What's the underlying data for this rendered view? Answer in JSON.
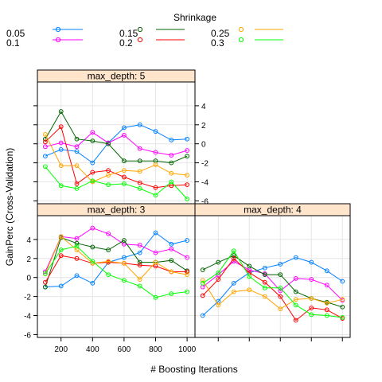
{
  "chart_data": {
    "type": "line",
    "xlabel": "# Boosting Iterations",
    "ylabel": "GainPerc (Cross-Validation)",
    "legend_title": "Shrinkage",
    "legend_position": "top",
    "grid": true,
    "x": [
      100,
      200,
      300,
      400,
      500,
      600,
      700,
      800,
      900,
      1000
    ],
    "x_ticks": [
      200,
      400,
      600,
      800,
      1000
    ],
    "x_tick_labels": [
      "200",
      "400",
      "600",
      "800",
      "1000"
    ],
    "xlim": [
      50,
      1050
    ],
    "ylim": [
      -6.3,
      6.5
    ],
    "y_ticks": [
      -6,
      -4,
      -2,
      0,
      2,
      4
    ],
    "y_tick_labels": [
      "-6",
      "-4",
      "-2",
      "0",
      "2",
      "4"
    ],
    "series_meta": [
      {
        "name": "0.05",
        "color": "#0080ff"
      },
      {
        "name": "0.1",
        "color": "#ff00ff"
      },
      {
        "name": "0.15",
        "color": "#006400"
      },
      {
        "name": "0.2",
        "color": "#ff0000"
      },
      {
        "name": "0.25",
        "color": "#ffa500"
      },
      {
        "name": "0.3",
        "color": "#00ff00"
      }
    ],
    "panels": [
      {
        "label": "max_depth: 5",
        "series": [
          {
            "name": "0.05",
            "values": [
              -1.3,
              -0.6,
              -0.8,
              -2.0,
              0.1,
              1.7,
              2.0,
              1.3,
              0.4,
              0.5
            ]
          },
          {
            "name": "0.1",
            "values": [
              -0.3,
              0.1,
              -0.3,
              1.2,
              0.1,
              0.9,
              -0.5,
              -0.9,
              -1.2,
              -0.7
            ]
          },
          {
            "name": "0.15",
            "values": [
              0.5,
              3.4,
              0.5,
              0.3,
              0.0,
              -1.8,
              -1.8,
              -1.8,
              -2.0,
              -1.3
            ]
          },
          {
            "name": "0.2",
            "values": [
              0.2,
              1.8,
              -4.2,
              -3.0,
              -2.8,
              -3.5,
              -4.1,
              -4.6,
              -4.4,
              -4.3
            ]
          },
          {
            "name": "0.25",
            "values": [
              1.0,
              -2.3,
              -2.3,
              -4.0,
              -3.3,
              -2.8,
              -2.9,
              -2.2,
              -3.1,
              -3.3
            ]
          },
          {
            "name": "0.3",
            "values": [
              -2.4,
              -4.4,
              -4.7,
              -3.9,
              -4.3,
              -4.2,
              -4.7,
              -5.4,
              -4.0,
              -5.8
            ]
          }
        ]
      },
      {
        "label": "max_depth: 3",
        "series": [
          {
            "name": "0.05",
            "values": [
              -1.0,
              -0.9,
              0.2,
              -0.6,
              1.6,
              2.1,
              2.6,
              4.7,
              3.5,
              3.9
            ]
          },
          {
            "name": "0.1",
            "values": [
              0.6,
              4.3,
              4.1,
              5.2,
              4.6,
              3.5,
              3.4,
              2.6,
              3.0,
              2.1
            ]
          },
          {
            "name": "0.15",
            "values": [
              -1.0,
              4.2,
              3.6,
              3.2,
              2.9,
              3.9,
              1.6,
              1.6,
              1.8,
              0.7
            ]
          },
          {
            "name": "0.2",
            "values": [
              -0.5,
              2.3,
              2.0,
              1.5,
              1.6,
              1.5,
              1.3,
              1.2,
              0.6,
              0.6
            ]
          },
          {
            "name": "0.25",
            "values": [
              0.4,
              4.3,
              2.9,
              1.5,
              1.7,
              1.5,
              -0.2,
              1.6,
              0.6,
              0.3
            ]
          },
          {
            "name": "0.3",
            "values": [
              0.4,
              2.9,
              3.3,
              1.7,
              0.3,
              -0.3,
              -0.9,
              -2.1,
              -1.7,
              -1.5
            ]
          }
        ]
      },
      {
        "label": "max_depth: 4",
        "series": [
          {
            "name": "0.05",
            "values": [
              -4.0,
              -2.5,
              -0.6,
              0.5,
              1.0,
              1.4,
              2.1,
              1.6,
              0.7,
              -0.4
            ]
          },
          {
            "name": "0.1",
            "values": [
              -1.0,
              0.3,
              1.7,
              0.8,
              0.4,
              -1.4,
              -0.1,
              -0.2,
              -0.8,
              -2.4
            ]
          },
          {
            "name": "0.15",
            "values": [
              0.8,
              1.6,
              2.3,
              1.2,
              0.3,
              0.3,
              -1.5,
              -2.2,
              -2.6,
              -3.1
            ]
          },
          {
            "name": "0.2",
            "values": [
              -1.9,
              -0.2,
              2.0,
              0.5,
              -0.5,
              -2.0,
              -4.5,
              -3.2,
              -3.4,
              -4.3
            ]
          },
          {
            "name": "0.25",
            "values": [
              -0.3,
              -2.9,
              -1.5,
              -1.3,
              -2.0,
              -3.3,
              -2.3,
              -2.2,
              -2.7,
              -2.3
            ]
          },
          {
            "name": "0.3",
            "values": [
              -0.6,
              0.5,
              2.8,
              0.1,
              -1.1,
              -1.1,
              -2.9,
              -3.9,
              -4.0,
              -4.2
            ]
          }
        ]
      }
    ]
  }
}
